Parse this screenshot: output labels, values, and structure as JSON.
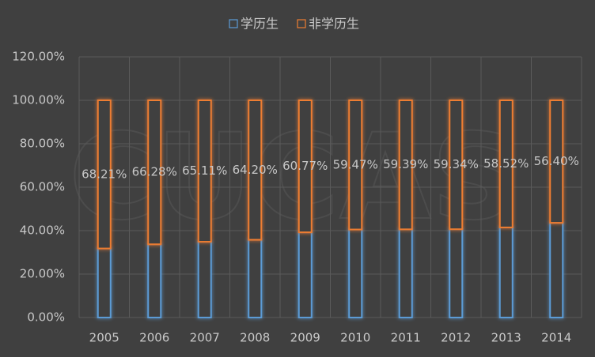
{
  "chart_data": {
    "type": "stacked_bar",
    "watermark": "CUCAS",
    "categories": [
      "2005",
      "2006",
      "2007",
      "2008",
      "2009",
      "2010",
      "2011",
      "2012",
      "2013",
      "2014"
    ],
    "series": [
      {
        "name": "学历生",
        "color": "#5b9bd5",
        "values": [
          31.79,
          33.72,
          34.89,
          35.8,
          39.23,
          40.53,
          40.61,
          40.66,
          41.48,
          43.6
        ]
      },
      {
        "name": "非学历生",
        "color": "#ed7d31",
        "values": [
          68.21,
          66.28,
          65.11,
          64.2,
          60.77,
          59.47,
          59.39,
          59.34,
          58.52,
          56.4
        ],
        "value_labels": [
          "68.21%",
          "66.28%",
          "65.11%",
          "64.20%",
          "60.77%",
          "59.47%",
          "59.39%",
          "59.34%",
          "58.52%",
          "56.40%"
        ]
      }
    ],
    "ylim": [
      0,
      120
    ],
    "yticks": [
      {
        "value": 0,
        "label": "0.00%"
      },
      {
        "value": 20,
        "label": "20.00%"
      },
      {
        "value": 40,
        "label": "40.00%"
      },
      {
        "value": 60,
        "label": "60.00%"
      },
      {
        "value": 80,
        "label": "80.00%"
      },
      {
        "value": 100,
        "label": "100.00%"
      },
      {
        "value": 120,
        "label": "120.00%"
      }
    ],
    "grid": true
  }
}
